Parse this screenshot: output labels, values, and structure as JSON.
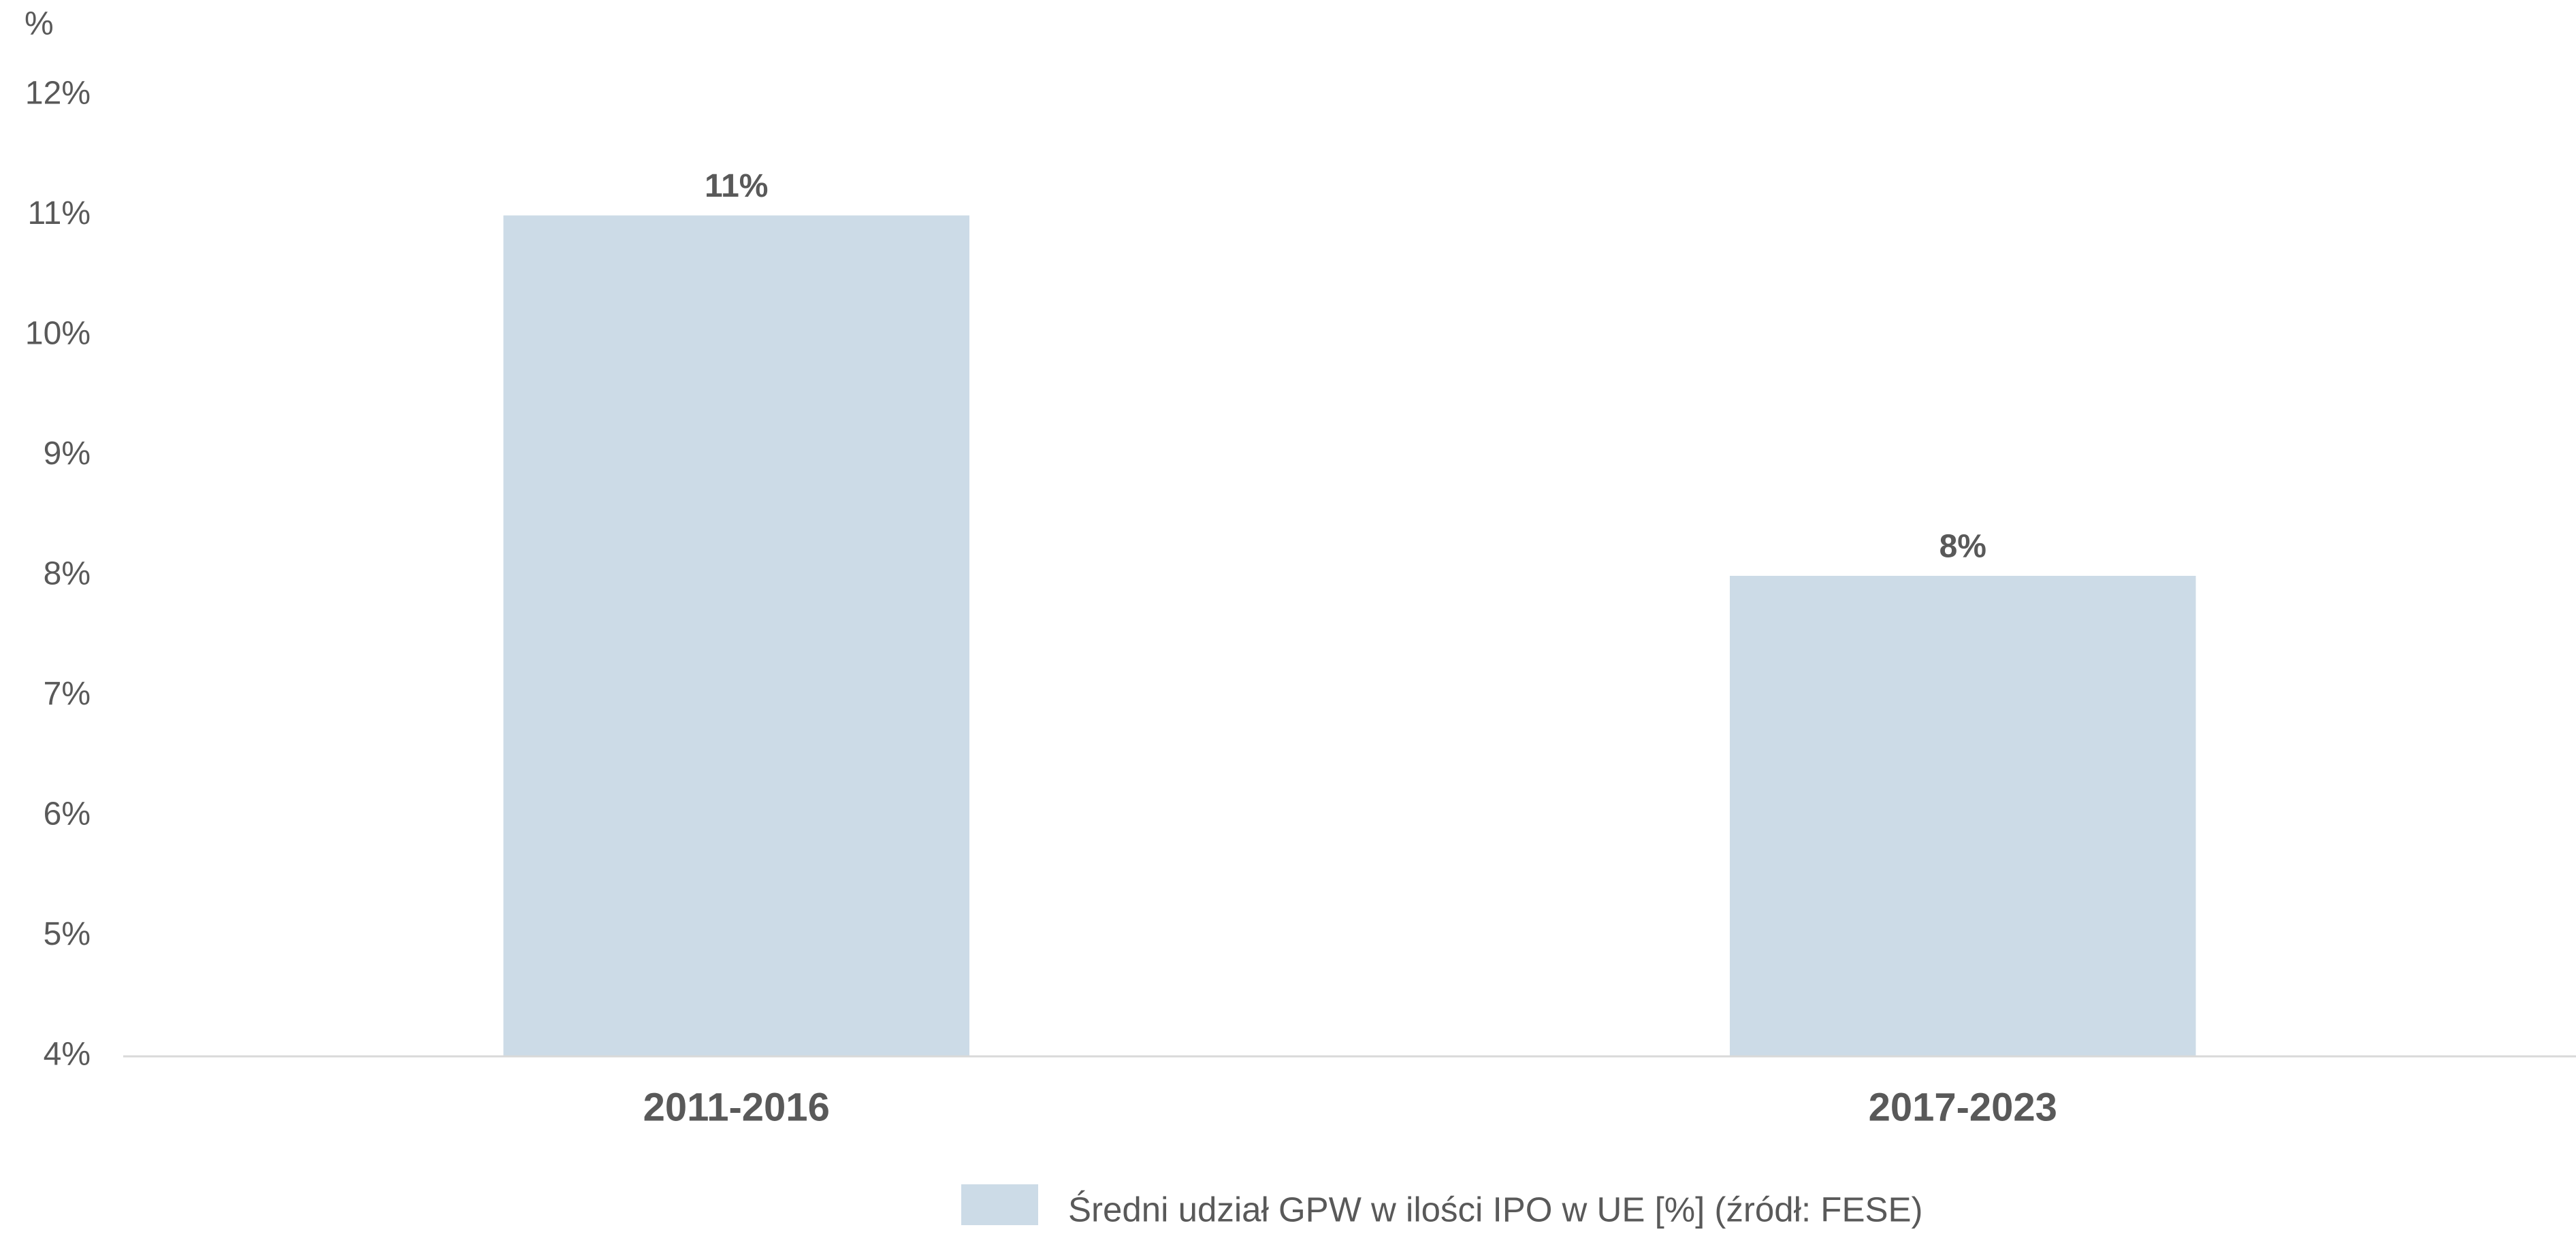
{
  "chart_data": {
    "type": "bar",
    "ylabel": "%",
    "categories": [
      "2011-2016",
      "2017-2023"
    ],
    "series": [
      {
        "name": "Średni udział GPW w ilości IPO w UE [%] (źródł: FESE)",
        "color": "#ccdbe7",
        "values": [
          11,
          8
        ],
        "value_labels": [
          "11%",
          "8%"
        ]
      }
    ],
    "ylim": [
      4,
      12
    ],
    "yticks": [
      {
        "value": 4,
        "label": "4%"
      },
      {
        "value": 5,
        "label": "5%"
      },
      {
        "value": 6,
        "label": "6%"
      },
      {
        "value": 7,
        "label": "7%"
      },
      {
        "value": 8,
        "label": "8%"
      },
      {
        "value": 9,
        "label": "9%"
      },
      {
        "value": 10,
        "label": "10%"
      },
      {
        "value": 11,
        "label": "11%"
      },
      {
        "value": 12,
        "label": "12%"
      }
    ],
    "grid": false
  }
}
